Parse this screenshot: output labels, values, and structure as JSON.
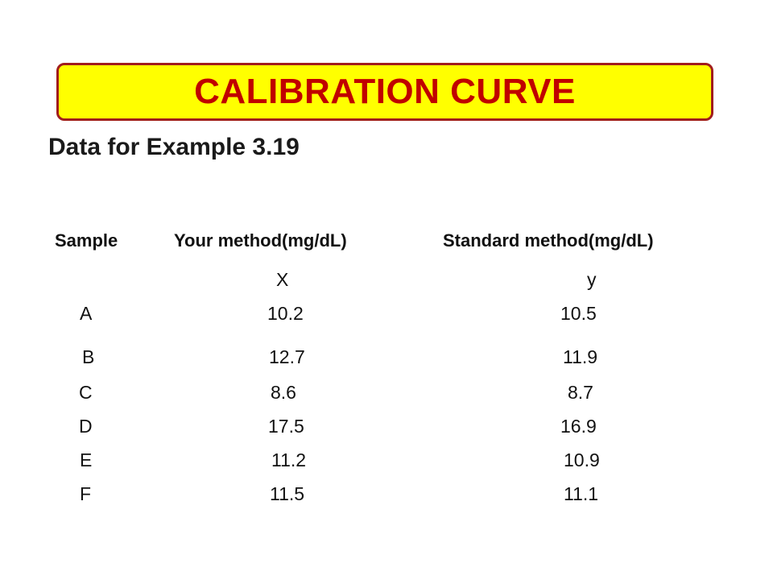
{
  "title": "CALIBRATION CURVE",
  "subtitle": "Data for Example 3.19",
  "table": {
    "headers": {
      "sample": "Sample",
      "your_method": "Your method(mg/dL)",
      "standard_method": "Standard method(mg/dL)"
    },
    "variables": {
      "x": "X",
      "y": "y"
    },
    "rows": [
      {
        "sample": "A",
        "x": "10.2",
        "y": "10.5"
      },
      {
        "sample": "B",
        "x": "12.7",
        "y": "11.9"
      },
      {
        "sample": "C",
        "x": "8.6",
        "y": "8.7"
      },
      {
        "sample": "D",
        "x": "17.5",
        "y": "16.9"
      },
      {
        "sample": "E",
        "x": "11.2",
        "y": "10.9"
      },
      {
        "sample": "F",
        "x": "11.5",
        "y": "11.1"
      }
    ]
  },
  "colors": {
    "banner_fill": "#ffff00",
    "banner_border": "#a11d1d",
    "title_text": "#c00000"
  }
}
